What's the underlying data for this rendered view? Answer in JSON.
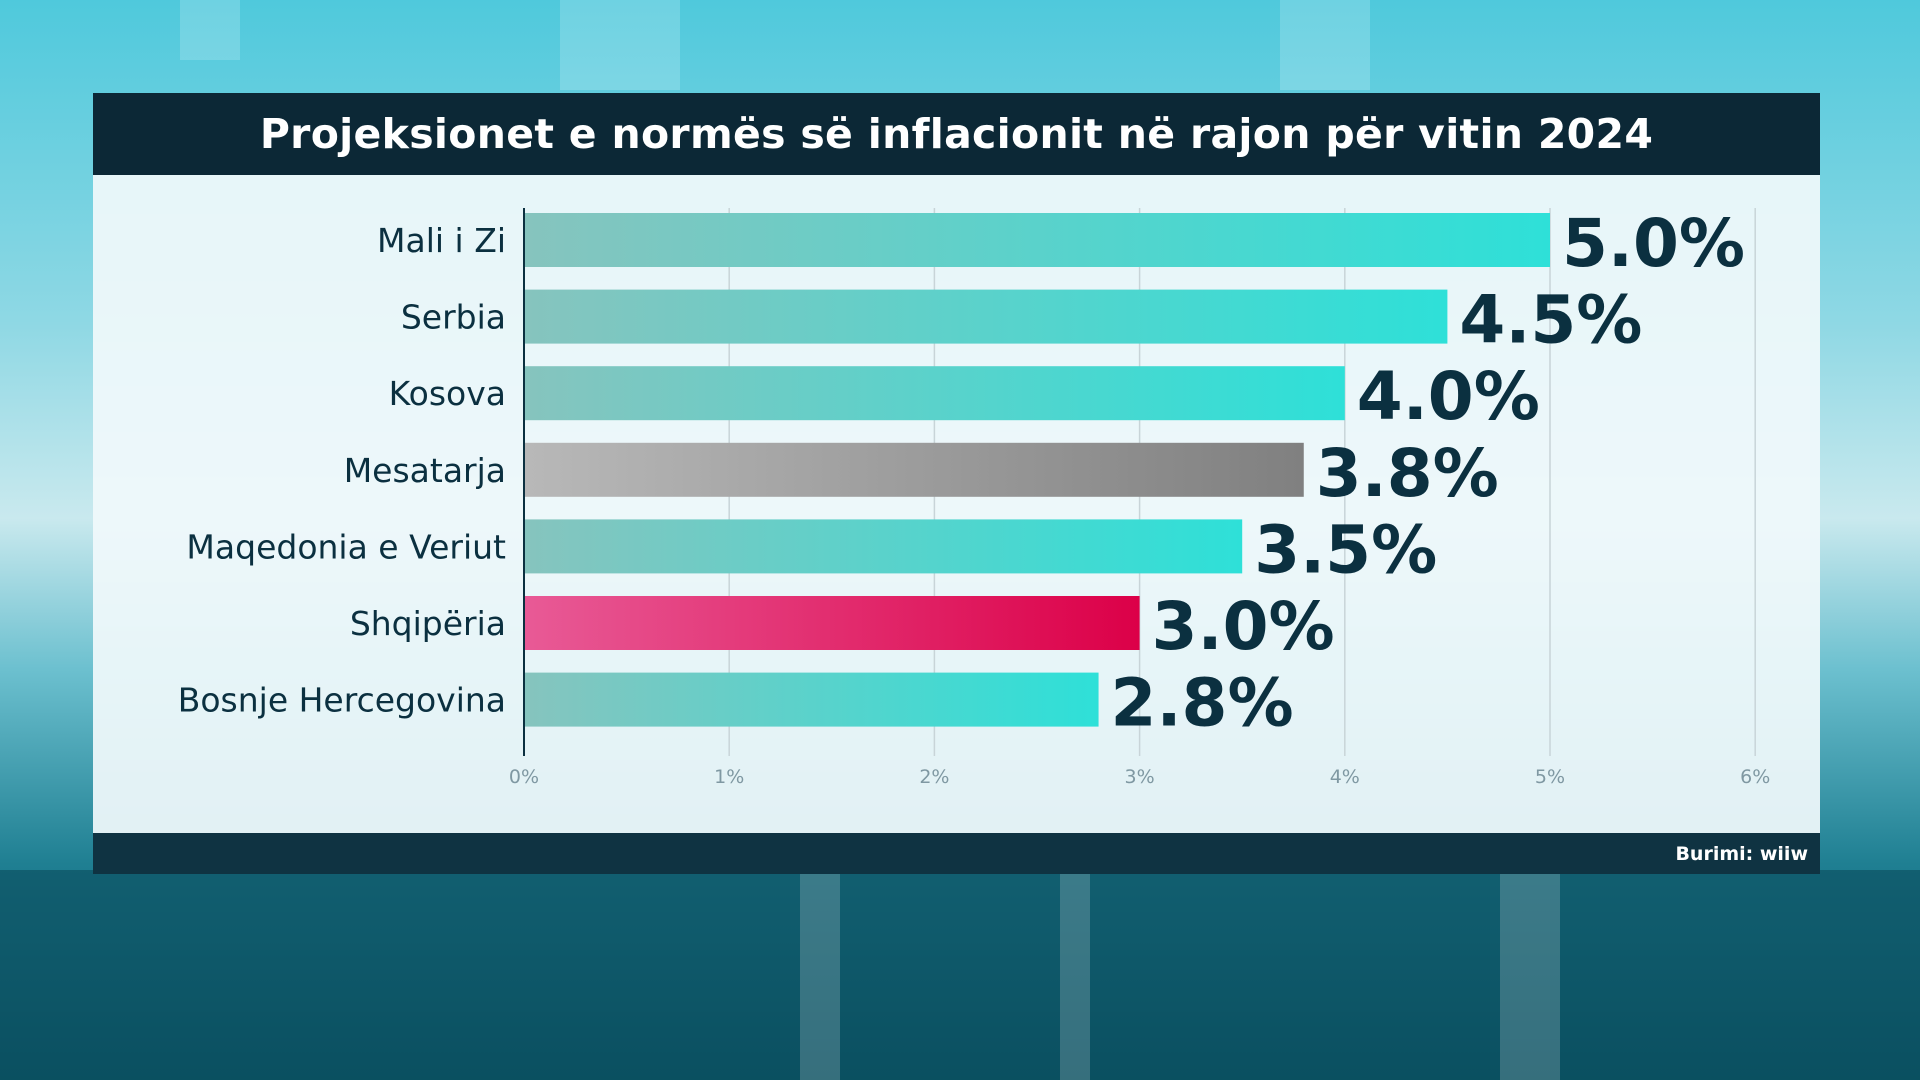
{
  "title": "Projeksionet e normës së inflacionit në rajon për vitin 2024",
  "source": "Burimi: wiiw",
  "colors": {
    "teal_start": "#86c4be",
    "teal_end": "#2ee0d8",
    "gray_start": "#b8b8b8",
    "gray_end": "#808080",
    "red_start": "#e85a96",
    "red_end": "#dc0048",
    "value_text": "#0b3040",
    "label_text": "#0b3040",
    "grid": "#c8d4d8",
    "tick": "#7f98a2"
  },
  "chart_data": {
    "type": "bar",
    "orientation": "horizontal",
    "categories": [
      "Mali i Zi",
      "Serbia",
      "Kosova",
      "Mesatarja",
      "Maqedonia e Veriut",
      "Shqipëria",
      "Bosnje Hercegovina"
    ],
    "values": [
      5.0,
      4.5,
      4.0,
      3.8,
      3.5,
      3.0,
      2.8
    ],
    "value_labels": [
      "5.0%",
      "4.5%",
      "4.0%",
      "3.8%",
      "3.5%",
      "3.0%",
      "2.8%"
    ],
    "bar_styles": [
      "teal",
      "teal",
      "teal",
      "gray",
      "teal",
      "red",
      "teal"
    ],
    "xlim": [
      0,
      6
    ],
    "xticks": [
      0,
      1,
      2,
      3,
      4,
      5,
      6
    ],
    "xtick_labels": [
      "0%",
      "1%",
      "2%",
      "3%",
      "4%",
      "5%",
      "6%"
    ],
    "grid": true
  }
}
